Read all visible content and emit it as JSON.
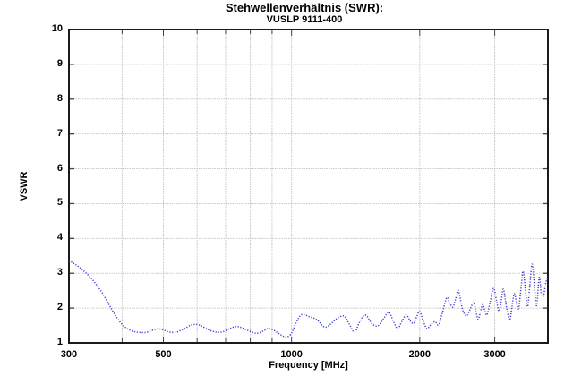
{
  "chart_data": {
    "type": "line",
    "title": "Stehwellenverhältnis (SWR):",
    "subtitle": "VUSLP 9111-400",
    "xlabel": "Frequency [MHz]",
    "ylabel": "VSWR",
    "x_scale": "log",
    "xlim": [
      300,
      4000
    ],
    "ylim": [
      1,
      10
    ],
    "x_ticks_labeled": [
      300,
      500,
      1000,
      2000,
      3000
    ],
    "x_gridlines": [
      400,
      500,
      600,
      700,
      800,
      900,
      1000,
      2000,
      3000
    ],
    "x_minor_ticks": [
      300,
      400,
      500,
      600,
      700,
      800,
      900,
      1000,
      2000,
      3000,
      4000
    ],
    "y_ticks": [
      1,
      2,
      3,
      4,
      5,
      6,
      7,
      8,
      9,
      10
    ],
    "grid": true,
    "legend": "none",
    "line_style": "dotted",
    "colors": {
      "curve": "#3f3fd4",
      "grid": "#c9c9c9",
      "frame": "#1a1a1a",
      "tick": "#444444",
      "text": "#000000"
    },
    "series": [
      {
        "name": "VSWR",
        "points": [
          [
            300,
            3.37
          ],
          [
            310,
            3.26
          ],
          [
            320,
            3.14
          ],
          [
            330,
            2.99
          ],
          [
            340,
            2.83
          ],
          [
            350,
            2.63
          ],
          [
            360,
            2.42
          ],
          [
            370,
            2.16
          ],
          [
            380,
            1.92
          ],
          [
            390,
            1.7
          ],
          [
            400,
            1.53
          ],
          [
            412,
            1.4
          ],
          [
            425,
            1.33
          ],
          [
            440,
            1.3
          ],
          [
            455,
            1.3
          ],
          [
            470,
            1.36
          ],
          [
            483,
            1.4
          ],
          [
            495,
            1.39
          ],
          [
            510,
            1.33
          ],
          [
            525,
            1.3
          ],
          [
            540,
            1.32
          ],
          [
            560,
            1.41
          ],
          [
            580,
            1.51
          ],
          [
            600,
            1.53
          ],
          [
            618,
            1.47
          ],
          [
            640,
            1.37
          ],
          [
            665,
            1.31
          ],
          [
            690,
            1.32
          ],
          [
            715,
            1.41
          ],
          [
            740,
            1.47
          ],
          [
            762,
            1.44
          ],
          [
            785,
            1.37
          ],
          [
            810,
            1.3
          ],
          [
            832,
            1.28
          ],
          [
            858,
            1.34
          ],
          [
            880,
            1.41
          ],
          [
            902,
            1.38
          ],
          [
            925,
            1.3
          ],
          [
            950,
            1.21
          ],
          [
            975,
            1.17
          ],
          [
            1000,
            1.28
          ],
          [
            1025,
            1.58
          ],
          [
            1050,
            1.79
          ],
          [
            1072,
            1.81
          ],
          [
            1100,
            1.75
          ],
          [
            1130,
            1.71
          ],
          [
            1158,
            1.62
          ],
          [
            1185,
            1.48
          ],
          [
            1210,
            1.46
          ],
          [
            1245,
            1.58
          ],
          [
            1285,
            1.72
          ],
          [
            1328,
            1.77
          ],
          [
            1365,
            1.55
          ],
          [
            1405,
            1.31
          ],
          [
            1442,
            1.58
          ],
          [
            1478,
            1.79
          ],
          [
            1505,
            1.76
          ],
          [
            1545,
            1.55
          ],
          [
            1595,
            1.49
          ],
          [
            1645,
            1.7
          ],
          [
            1692,
            1.88
          ],
          [
            1735,
            1.62
          ],
          [
            1775,
            1.41
          ],
          [
            1818,
            1.63
          ],
          [
            1860,
            1.8
          ],
          [
            1900,
            1.63
          ],
          [
            1935,
            1.56
          ],
          [
            1968,
            1.76
          ],
          [
            2000,
            1.9
          ],
          [
            2040,
            1.62
          ],
          [
            2079,
            1.41
          ],
          [
            2125,
            1.53
          ],
          [
            2172,
            1.61
          ],
          [
            2215,
            1.52
          ],
          [
            2262,
            1.88
          ],
          [
            2315,
            2.3
          ],
          [
            2355,
            2.13
          ],
          [
            2395,
            2.03
          ],
          [
            2430,
            2.28
          ],
          [
            2466,
            2.5
          ],
          [
            2520,
            1.97
          ],
          [
            2576,
            1.78
          ],
          [
            2625,
            1.96
          ],
          [
            2678,
            2.16
          ],
          [
            2710,
            1.9
          ],
          [
            2744,
            1.68
          ],
          [
            2778,
            1.9
          ],
          [
            2811,
            2.1
          ],
          [
            2845,
            1.92
          ],
          [
            2879,
            1.81
          ],
          [
            2930,
            2.2
          ],
          [
            2982,
            2.57
          ],
          [
            3030,
            2.22
          ],
          [
            3070,
            1.91
          ],
          [
            3108,
            2.22
          ],
          [
            3145,
            2.54
          ],
          [
            3200,
            2.0
          ],
          [
            3252,
            1.65
          ],
          [
            3292,
            2.02
          ],
          [
            3332,
            2.41
          ],
          [
            3375,
            2.17
          ],
          [
            3414,
            1.99
          ],
          [
            3455,
            2.52
          ],
          [
            3497,
            3.06
          ],
          [
            3540,
            2.55
          ],
          [
            3583,
            2.04
          ],
          [
            3625,
            2.62
          ],
          [
            3671,
            3.26
          ],
          [
            3716,
            2.68
          ],
          [
            3761,
            2.07
          ],
          [
            3816,
            2.88
          ],
          [
            3860,
            2.42
          ],
          [
            3905,
            2.35
          ],
          [
            3950,
            2.7
          ],
          [
            3986,
            2.85
          ]
        ]
      }
    ]
  }
}
